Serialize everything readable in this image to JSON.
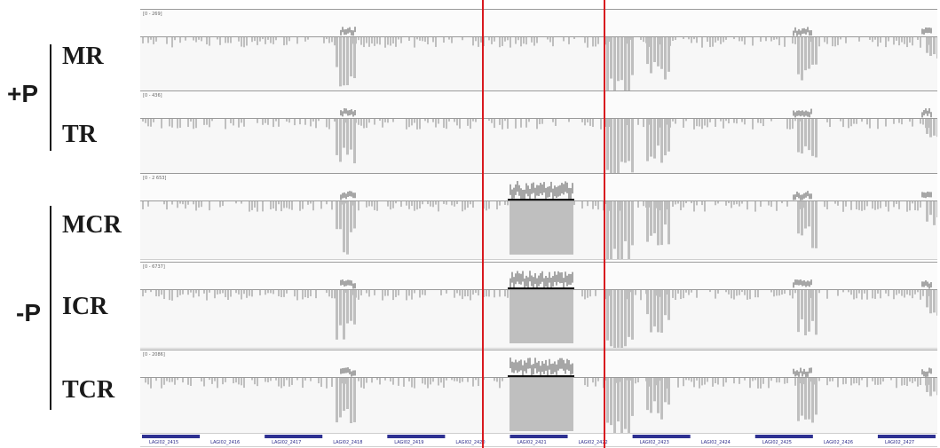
{
  "groups": [
    {
      "label": "+P",
      "samples": [
        "MR",
        "TR"
      ]
    },
    {
      "label": "-P",
      "samples": [
        "MCR",
        "ICR",
        "TCR"
      ]
    }
  ],
  "tracks": [
    {
      "name": "MR",
      "range": "[0 - 269]"
    },
    {
      "name": "TR",
      "range": "[0 - 436]"
    },
    {
      "name": "MCR",
      "range": "[0 - 2 653]"
    },
    {
      "name": "ICR",
      "range": "[0 - 6737]"
    },
    {
      "name": "TCR",
      "range": "[0 - 2086]"
    }
  ],
  "genes": [
    "LAGI02_2415",
    "LAGI02_2416",
    "LAGI02_2417",
    "LAGI02_2418",
    "LAGI02_2419",
    "LAGI02_2420",
    "LAGI02_2421",
    "LAGI02_2422",
    "LAGI02_2423",
    "LAGI02_2424",
    "LAGI02_2425",
    "LAGI02_2426",
    "LAGI02_2427"
  ],
  "colors": {
    "reads": "#bfbfbf",
    "coverage": "#a6a6a6",
    "gene": "#2e3192",
    "highlight": "#d8191f"
  }
}
